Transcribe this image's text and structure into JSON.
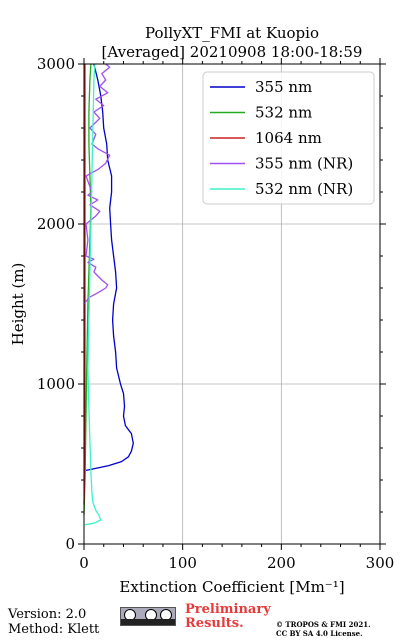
{
  "chart_data": {
    "type": "line",
    "title": "PollyXT_FMI at Kuopio",
    "subtitle": "[Averaged] 20210908 18:00-18:59",
    "xlabel": "Extinction Coefficient [Mm⁻¹]",
    "ylabel": "Height (m)",
    "xlim": [
      0,
      300
    ],
    "ylim": [
      0,
      3000
    ],
    "xticks": [
      "0",
      "100",
      "200",
      "300"
    ],
    "yticks": [
      "0",
      "1000",
      "2000",
      "3000"
    ],
    "grid": true,
    "legend_position": "top-right",
    "series": [
      {
        "name": "355 nm",
        "color": "#0000cc",
        "points": [
          [
            2,
            460
          ],
          [
            10,
            470
          ],
          [
            25,
            490
          ],
          [
            38,
            515
          ],
          [
            45,
            545
          ],
          [
            48,
            580
          ],
          [
            50,
            630
          ],
          [
            48,
            690
          ],
          [
            42,
            740
          ],
          [
            40,
            800
          ],
          [
            41,
            860
          ],
          [
            40,
            940
          ],
          [
            37,
            1000
          ],
          [
            33,
            1100
          ],
          [
            32,
            1200
          ],
          [
            30,
            1300
          ],
          [
            29,
            1400
          ],
          [
            30,
            1500
          ],
          [
            33,
            1600
          ],
          [
            32,
            1700
          ],
          [
            30,
            1800
          ],
          [
            28,
            1900
          ],
          [
            27,
            2000
          ],
          [
            26,
            2100
          ],
          [
            28,
            2200
          ],
          [
            28,
            2300
          ],
          [
            24,
            2400
          ],
          [
            23,
            2500
          ],
          [
            20,
            2600
          ],
          [
            19,
            2700
          ],
          [
            17,
            2800
          ],
          [
            14,
            2900
          ],
          [
            10,
            3000
          ]
        ]
      },
      {
        "name": "532 nm",
        "color": "#22aa22",
        "points": [
          [
            0,
            180
          ],
          [
            1,
            400
          ],
          [
            2,
            800
          ],
          [
            3,
            1200
          ],
          [
            4,
            1500
          ],
          [
            5,
            1700
          ],
          [
            6,
            1900
          ],
          [
            7,
            2100
          ],
          [
            6,
            2300
          ],
          [
            5,
            2500
          ],
          [
            5,
            2700
          ],
          [
            6,
            2900
          ],
          [
            7,
            3000
          ]
        ]
      },
      {
        "name": "1064 nm",
        "color": "#cc2222",
        "points": [
          [
            0,
            250
          ],
          [
            1,
            500
          ],
          [
            1,
            800
          ],
          [
            1,
            1200
          ],
          [
            1,
            1600
          ],
          [
            1,
            2000
          ],
          [
            1,
            2400
          ],
          [
            1,
            2800
          ],
          [
            1,
            3000
          ]
        ]
      },
      {
        "name": "355 nm (NR)",
        "color": "#a050f0",
        "points": [
          [
            0,
            1500
          ],
          [
            5,
            1540
          ],
          [
            14,
            1570
          ],
          [
            22,
            1600
          ],
          [
            24,
            1620
          ],
          [
            18,
            1650
          ],
          [
            10,
            1700
          ],
          [
            12,
            1730
          ],
          [
            4,
            1760
          ],
          [
            10,
            1780
          ],
          [
            2,
            1800
          ],
          [
            4,
            1900
          ],
          [
            2,
            2000
          ],
          [
            12,
            2050
          ],
          [
            16,
            2080
          ],
          [
            6,
            2120
          ],
          [
            14,
            2150
          ],
          [
            4,
            2180
          ],
          [
            8,
            2200
          ],
          [
            2,
            2300
          ],
          [
            14,
            2340
          ],
          [
            22,
            2380
          ],
          [
            26,
            2430
          ],
          [
            14,
            2470
          ],
          [
            8,
            2500
          ],
          [
            12,
            2560
          ],
          [
            6,
            2600
          ],
          [
            16,
            2660
          ],
          [
            10,
            2700
          ],
          [
            20,
            2740
          ],
          [
            12,
            2780
          ],
          [
            24,
            2820
          ],
          [
            16,
            2860
          ],
          [
            22,
            2900
          ],
          [
            18,
            2940
          ],
          [
            26,
            2980
          ],
          [
            22,
            3000
          ]
        ]
      },
      {
        "name": "532 nm (NR)",
        "color": "#40f0c8",
        "points": [
          [
            1,
            120
          ],
          [
            10,
            130
          ],
          [
            17,
            150
          ],
          [
            15,
            180
          ],
          [
            12,
            210
          ],
          [
            9,
            260
          ],
          [
            8,
            320
          ],
          [
            7,
            450
          ],
          [
            6,
            650
          ],
          [
            5,
            850
          ],
          [
            4,
            1100
          ],
          [
            5,
            1400
          ],
          [
            6,
            1700
          ],
          [
            7,
            2000
          ],
          [
            8,
            2300
          ],
          [
            9,
            2600
          ],
          [
            10,
            2900
          ],
          [
            11,
            3000
          ]
        ]
      }
    ]
  },
  "footer": {
    "version": "Version: 2.0",
    "method": "Method: Klett",
    "preliminary": "Preliminary",
    "results": "Results.",
    "copyright": "© TROPOS & FMI 2021.",
    "license": "CC BY SA 4.0 License."
  },
  "colors": {
    "grid": "#b0b0b0",
    "preliminary": "#e83a3a"
  },
  "icons": {
    "license_badge": "cc-by-sa-icon"
  }
}
